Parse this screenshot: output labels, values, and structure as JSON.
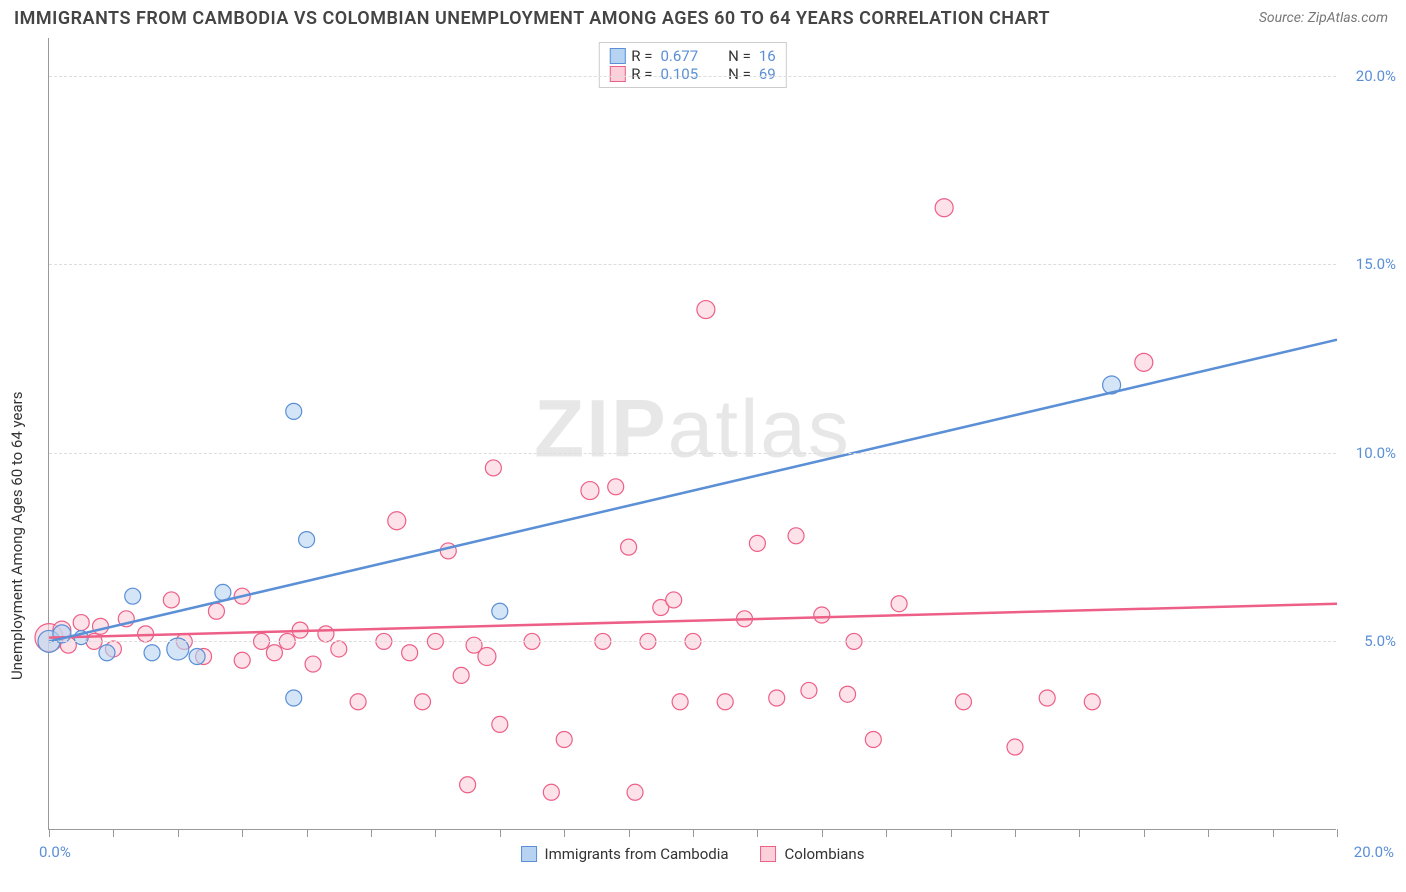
{
  "title": "IMMIGRANTS FROM CAMBODIA VS COLOMBIAN UNEMPLOYMENT AMONG AGES 60 TO 64 YEARS CORRELATION CHART",
  "source": "Source: ZipAtlas.com",
  "ylabel": "Unemployment Among Ages 60 to 64 years",
  "watermark": "ZIPatlas",
  "chart": {
    "type": "scatter",
    "background_color": "#ffffff",
    "grid_color": "#dddddd",
    "axis_color": "#999999",
    "text_color": "#333333",
    "tick_label_color": "#5b8fd6",
    "xlim": [
      0,
      20
    ],
    "ylim": [
      0,
      21
    ],
    "ytick_step": 5,
    "ytick_labels": [
      "5.0%",
      "10.0%",
      "15.0%",
      "20.0%"
    ],
    "xtick_step": 1,
    "xtick_label_left": "0.0%",
    "xtick_label_right": "20.0%",
    "marker_radius": 9,
    "marker_radius_small": 7,
    "line_width": 2.5,
    "title_fontsize": 18,
    "label_fontsize": 15,
    "series": [
      {
        "name": "Immigrants from Cambodia",
        "legend_key": "cambodia",
        "fill": "#b6d3f2",
        "stroke": "#5b8fd6",
        "R": "0.677",
        "N": "16",
        "trend": {
          "x1": 0,
          "y1": 5.0,
          "x2": 20,
          "y2": 13.0
        },
        "points": [
          {
            "x": 0.0,
            "y": 5.0,
            "r": 11
          },
          {
            "x": 0.2,
            "y": 5.2,
            "r": 9
          },
          {
            "x": 0.5,
            "y": 5.1,
            "r": 7
          },
          {
            "x": 0.9,
            "y": 4.7,
            "r": 8
          },
          {
            "x": 1.3,
            "y": 6.2,
            "r": 8
          },
          {
            "x": 1.6,
            "y": 4.7,
            "r": 8
          },
          {
            "x": 2.0,
            "y": 4.8,
            "r": 11
          },
          {
            "x": 2.3,
            "y": 4.6,
            "r": 8
          },
          {
            "x": 2.7,
            "y": 6.3,
            "r": 8
          },
          {
            "x": 3.8,
            "y": 3.5,
            "r": 8
          },
          {
            "x": 3.8,
            "y": 11.1,
            "r": 8
          },
          {
            "x": 4.0,
            "y": 7.7,
            "r": 8
          },
          {
            "x": 7.0,
            "y": 5.8,
            "r": 8
          },
          {
            "x": 16.5,
            "y": 11.8,
            "r": 9
          }
        ]
      },
      {
        "name": "Colombians",
        "legend_key": "colombians",
        "fill": "#fbd0da",
        "stroke": "#ed5f86",
        "R": "0.105",
        "N": "69",
        "trend": {
          "x1": 0,
          "y1": 5.1,
          "x2": 20,
          "y2": 6.0
        },
        "points": [
          {
            "x": 0.0,
            "y": 5.1,
            "r": 14
          },
          {
            "x": 0.2,
            "y": 5.3,
            "r": 9
          },
          {
            "x": 0.3,
            "y": 4.9,
            "r": 8
          },
          {
            "x": 0.5,
            "y": 5.5,
            "r": 8
          },
          {
            "x": 0.7,
            "y": 5.0,
            "r": 8
          },
          {
            "x": 0.8,
            "y": 5.4,
            "r": 8
          },
          {
            "x": 1.0,
            "y": 4.8,
            "r": 8
          },
          {
            "x": 1.2,
            "y": 5.6,
            "r": 8
          },
          {
            "x": 1.5,
            "y": 5.2,
            "r": 8
          },
          {
            "x": 1.9,
            "y": 6.1,
            "r": 8
          },
          {
            "x": 2.1,
            "y": 5.0,
            "r": 8
          },
          {
            "x": 2.4,
            "y": 4.6,
            "r": 8
          },
          {
            "x": 2.6,
            "y": 5.8,
            "r": 8
          },
          {
            "x": 3.0,
            "y": 4.5,
            "r": 8
          },
          {
            "x": 3.0,
            "y": 6.2,
            "r": 8
          },
          {
            "x": 3.3,
            "y": 5.0,
            "r": 8
          },
          {
            "x": 3.5,
            "y": 4.7,
            "r": 8
          },
          {
            "x": 3.7,
            "y": 5.0,
            "r": 8
          },
          {
            "x": 3.9,
            "y": 5.3,
            "r": 8
          },
          {
            "x": 4.1,
            "y": 4.4,
            "r": 8
          },
          {
            "x": 4.3,
            "y": 5.2,
            "r": 8
          },
          {
            "x": 4.5,
            "y": 4.8,
            "r": 8
          },
          {
            "x": 4.8,
            "y": 3.4,
            "r": 8
          },
          {
            "x": 5.2,
            "y": 5.0,
            "r": 8
          },
          {
            "x": 5.4,
            "y": 8.2,
            "r": 9
          },
          {
            "x": 5.6,
            "y": 4.7,
            "r": 8
          },
          {
            "x": 5.8,
            "y": 3.4,
            "r": 8
          },
          {
            "x": 6.0,
            "y": 5.0,
            "r": 8
          },
          {
            "x": 6.2,
            "y": 7.4,
            "r": 8
          },
          {
            "x": 6.4,
            "y": 4.1,
            "r": 8
          },
          {
            "x": 6.5,
            "y": 1.2,
            "r": 8
          },
          {
            "x": 6.6,
            "y": 4.9,
            "r": 8
          },
          {
            "x": 6.8,
            "y": 4.6,
            "r": 9
          },
          {
            "x": 6.9,
            "y": 9.6,
            "r": 8
          },
          {
            "x": 7.0,
            "y": 2.8,
            "r": 8
          },
          {
            "x": 7.5,
            "y": 5.0,
            "r": 8
          },
          {
            "x": 7.8,
            "y": 1.0,
            "r": 8
          },
          {
            "x": 8.0,
            "y": 2.4,
            "r": 8
          },
          {
            "x": 8.4,
            "y": 9.0,
            "r": 9
          },
          {
            "x": 8.6,
            "y": 5.0,
            "r": 8
          },
          {
            "x": 8.8,
            "y": 9.1,
            "r": 8
          },
          {
            "x": 9.0,
            "y": 7.5,
            "r": 8
          },
          {
            "x": 9.1,
            "y": 1.0,
            "r": 8
          },
          {
            "x": 9.3,
            "y": 5.0,
            "r": 8
          },
          {
            "x": 9.5,
            "y": 5.9,
            "r": 8
          },
          {
            "x": 9.7,
            "y": 6.1,
            "r": 8
          },
          {
            "x": 9.8,
            "y": 3.4,
            "r": 8
          },
          {
            "x": 10.0,
            "y": 5.0,
            "r": 8
          },
          {
            "x": 10.2,
            "y": 13.8,
            "r": 9
          },
          {
            "x": 10.5,
            "y": 3.4,
            "r": 8
          },
          {
            "x": 10.8,
            "y": 5.6,
            "r": 8
          },
          {
            "x": 11.0,
            "y": 7.6,
            "r": 8
          },
          {
            "x": 11.3,
            "y": 3.5,
            "r": 8
          },
          {
            "x": 11.6,
            "y": 7.8,
            "r": 8
          },
          {
            "x": 11.8,
            "y": 3.7,
            "r": 8
          },
          {
            "x": 12.0,
            "y": 5.7,
            "r": 8
          },
          {
            "x": 12.4,
            "y": 3.6,
            "r": 8
          },
          {
            "x": 12.5,
            "y": 5.0,
            "r": 8
          },
          {
            "x": 12.8,
            "y": 2.4,
            "r": 8
          },
          {
            "x": 13.2,
            "y": 6.0,
            "r": 8
          },
          {
            "x": 13.9,
            "y": 16.5,
            "r": 9
          },
          {
            "x": 14.2,
            "y": 3.4,
            "r": 8
          },
          {
            "x": 15.0,
            "y": 2.2,
            "r": 8
          },
          {
            "x": 15.5,
            "y": 3.5,
            "r": 8
          },
          {
            "x": 16.2,
            "y": 3.4,
            "r": 8
          },
          {
            "x": 17.0,
            "y": 12.4,
            "r": 9
          }
        ]
      }
    ]
  },
  "legend_top": {
    "rows": [
      {
        "swatch": 0,
        "r_label": "R =",
        "r_val": "0.677",
        "n_label": "N =",
        "n_val": "16"
      },
      {
        "swatch": 1,
        "r_label": "R =",
        "r_val": "0.105",
        "n_label": "N =",
        "n_val": "69"
      }
    ]
  },
  "legend_bottom": {
    "items": [
      {
        "swatch": 0,
        "label": "Immigrants from Cambodia"
      },
      {
        "swatch": 1,
        "label": "Colombians"
      }
    ]
  }
}
